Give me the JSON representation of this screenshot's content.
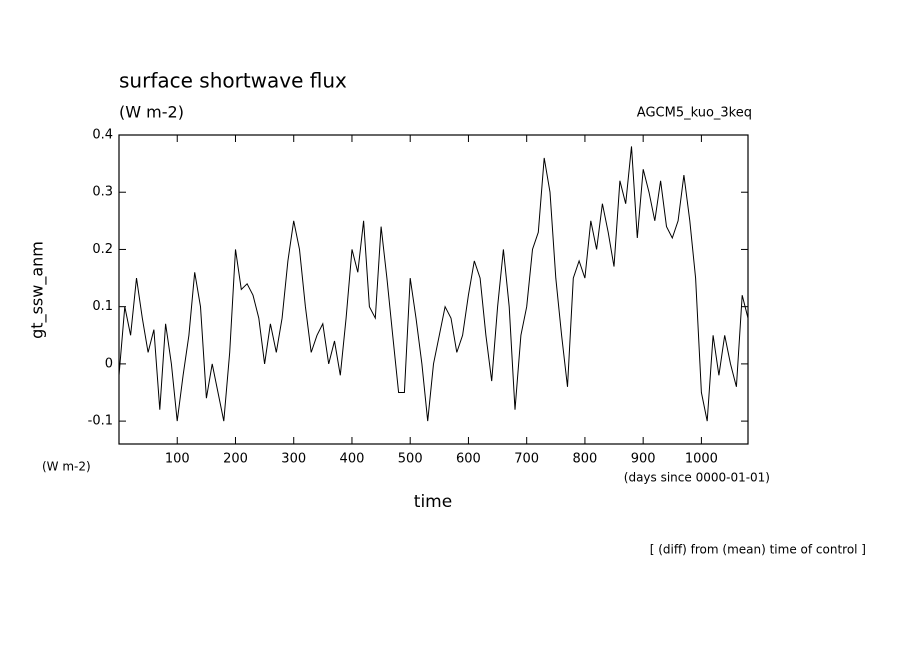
{
  "chart_data": {
    "type": "line",
    "title": "surface shortwave flux",
    "units": "(W m-2)",
    "experiment": "AGCM5_kuo_3keq",
    "ylabel": "gt_ssw_anm",
    "y_units": "(W m-2)",
    "x_units": "(days since 0000-01-01)",
    "xlabel": "time",
    "note": "[ (diff) from (mean) time of control ]",
    "xlim": [
      0,
      1080
    ],
    "ylim": [
      -0.14,
      0.4
    ],
    "xticks": [
      100,
      200,
      300,
      400,
      500,
      600,
      700,
      800,
      900,
      1000
    ],
    "yticks": [
      -0.1,
      0.0,
      0.1,
      0.2,
      0.3,
      0.4
    ],
    "series": [
      {
        "color": "#000000",
        "x": [
          0,
          10,
          20,
          30,
          40,
          50,
          60,
          70,
          80,
          90,
          100,
          110,
          120,
          130,
          140,
          150,
          160,
          170,
          180,
          190,
          200,
          210,
          220,
          230,
          240,
          250,
          260,
          270,
          280,
          290,
          300,
          310,
          320,
          330,
          340,
          350,
          360,
          370,
          380,
          390,
          400,
          410,
          420,
          430,
          440,
          450,
          460,
          470,
          480,
          490,
          500,
          510,
          520,
          530,
          540,
          550,
          560,
          570,
          580,
          590,
          600,
          610,
          620,
          630,
          640,
          650,
          660,
          670,
          680,
          690,
          700,
          710,
          720,
          730,
          740,
          750,
          760,
          770,
          780,
          790,
          800,
          810,
          820,
          830,
          840,
          850,
          860,
          870,
          880,
          890,
          900,
          910,
          920,
          930,
          940,
          950,
          960,
          970,
          980,
          990,
          1000,
          1010,
          1020,
          1030,
          1040,
          1050,
          1060,
          1070,
          1080
        ],
        "values": [
          -0.02,
          0.1,
          0.05,
          0.15,
          0.08,
          0.02,
          0.06,
          -0.08,
          0.07,
          0.0,
          -0.1,
          -0.02,
          0.05,
          0.16,
          0.1,
          -0.06,
          0.0,
          -0.05,
          -0.1,
          0.02,
          0.2,
          0.13,
          0.14,
          0.12,
          0.08,
          0.0,
          0.07,
          0.02,
          0.08,
          0.18,
          0.25,
          0.2,
          0.1,
          0.02,
          0.05,
          0.07,
          0.0,
          0.04,
          -0.02,
          0.08,
          0.2,
          0.16,
          0.25,
          0.1,
          0.08,
          0.24,
          0.15,
          0.05,
          -0.05,
          -0.05,
          0.15,
          0.08,
          0.0,
          -0.1,
          0.0,
          0.05,
          0.1,
          0.08,
          0.02,
          0.05,
          0.12,
          0.18,
          0.15,
          0.05,
          -0.03,
          0.1,
          0.2,
          0.1,
          -0.08,
          0.05,
          0.1,
          0.2,
          0.23,
          0.36,
          0.3,
          0.15,
          0.05,
          -0.04,
          0.15,
          0.18,
          0.15,
          0.25,
          0.2,
          0.28,
          0.23,
          0.17,
          0.32,
          0.28,
          0.38,
          0.22,
          0.34,
          0.3,
          0.25,
          0.32,
          0.24,
          0.22,
          0.25,
          0.33,
          0.25,
          0.15,
          -0.05,
          -0.1,
          0.05,
          -0.02,
          0.05,
          0.0,
          -0.04,
          0.12,
          0.08
        ]
      }
    ]
  }
}
